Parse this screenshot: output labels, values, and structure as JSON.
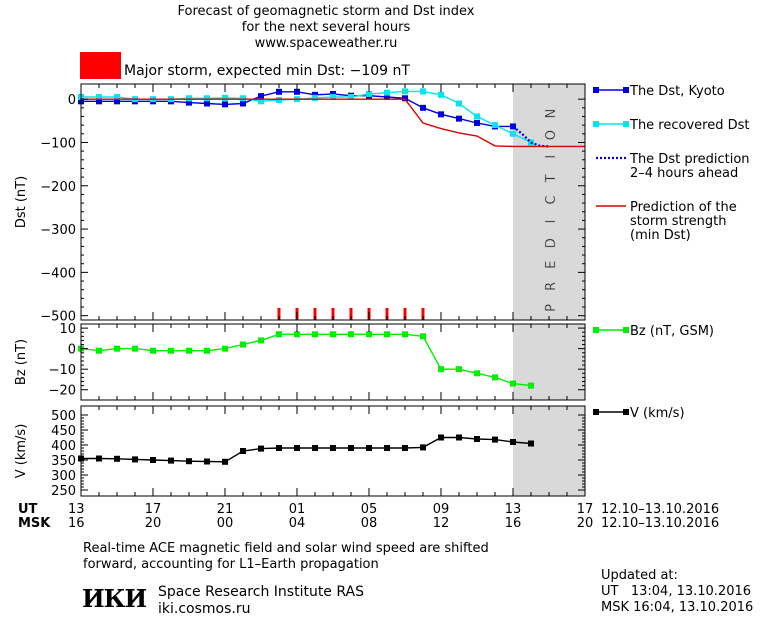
{
  "header": {
    "title_lines": [
      "Forecast of geomagnetic storm and Dst index",
      "for the next several hours",
      "www.spaceweather.ru"
    ],
    "storm_label": "Major storm, expected min Dst: −109 nT",
    "storm_color": "#ff0000"
  },
  "footer": {
    "caption_lines": [
      "Real-time ACE magnetic field and solar wind speed are shifted",
      "forward, accounting for L1–Earth propagation"
    ],
    "logo_text": "ИКИ",
    "institute": "Space Research Institute RAS",
    "site": "iki.cosmos.ru",
    "updated_label": "Updated at:",
    "updated_ut": "UT   13:04, 13.10.2016",
    "updated_msk": "MSK 16:04, 13.10.2016"
  },
  "time_axis": {
    "ut_label": "UT",
    "msk_label": "MSK",
    "ut_ticks": [
      "13",
      "17",
      "21",
      "01",
      "05",
      "09",
      "13",
      "17"
    ],
    "msk_ticks": [
      "16",
      "20",
      "00",
      "04",
      "08",
      "12",
      "16",
      "20"
    ],
    "tick_hours": [
      13,
      17,
      21,
      25,
      29,
      33,
      37,
      41
    ],
    "date_range_ut": "12.10–13.10.2016",
    "date_range_msk": "12.10–13.10.2016",
    "range_hours": [
      13,
      41
    ],
    "prediction_start_hour": 37,
    "prediction_label": "PREDICTION"
  },
  "chart_data": [
    {
      "type": "line",
      "ylabel": "Dst (nT)",
      "ylim": [
        -510,
        35
      ],
      "yticks": [
        0,
        -100,
        -200,
        -300,
        -400,
        -500
      ],
      "x_units": "hours after 12.10.2016 00:00 UT",
      "series": [
        {
          "name": "The Dst, Kyoto",
          "color": "#0000dd",
          "style": "line-square",
          "x": [
            13,
            14,
            15,
            16,
            17,
            18,
            19,
            20,
            21,
            22,
            23,
            24,
            25,
            26,
            27,
            28,
            29,
            30,
            31,
            32,
            33,
            34,
            35,
            36,
            37
          ],
          "y": [
            -5,
            -5,
            -5,
            -5,
            -5,
            -5,
            -8,
            -10,
            -12,
            -10,
            7,
            17,
            17,
            10,
            12,
            8,
            8,
            5,
            2,
            -20,
            -35,
            -45,
            -55,
            -63,
            -63
          ]
        },
        {
          "name": "The recovered Dst",
          "color": "#00e5ee",
          "style": "line-square",
          "x": [
            13,
            14,
            15,
            16,
            17,
            18,
            19,
            20,
            21,
            22,
            23,
            24,
            25,
            26,
            27,
            28,
            29,
            30,
            31,
            32,
            33,
            34,
            35,
            36,
            37,
            38
          ],
          "y": [
            5,
            5,
            5,
            0,
            0,
            0,
            2,
            2,
            3,
            2,
            -5,
            -2,
            0,
            3,
            5,
            5,
            12,
            15,
            18,
            18,
            10,
            -10,
            -40,
            -60,
            -80,
            -100
          ]
        },
        {
          "name": "The Dst prediction 2–4 hours ahead",
          "legend_lines": [
            "The Dst prediction",
            "2–4 hours ahead"
          ],
          "color": "#0000dd",
          "style": "dotted",
          "x": [
            37,
            37.5,
            38,
            38.5,
            39
          ],
          "y": [
            -63,
            -80,
            -100,
            -108,
            -109
          ]
        },
        {
          "name": "Prediction of the storm strength (min Dst)",
          "legend_lines": [
            "Prediction of the",
            "storm strength",
            "(min Dst)"
          ],
          "color": "#dd0000",
          "style": "line",
          "x": [
            13,
            31,
            32,
            33,
            34,
            35,
            36,
            37,
            38,
            39,
            41
          ],
          "y": [
            0,
            0,
            -55,
            -68,
            -78,
            -85,
            -108,
            -109,
            -109,
            -109,
            -109
          ]
        }
      ],
      "storm_markers": {
        "color": "#ff0000",
        "x": [
          24,
          25,
          26,
          27,
          28,
          29,
          30,
          31,
          32
        ]
      }
    },
    {
      "type": "line",
      "ylabel": "Bz (nT)",
      "ylim": [
        -25,
        12
      ],
      "yticks": [
        10,
        0,
        -10,
        -20
      ],
      "series": [
        {
          "name": "Bz (nT, GSM)",
          "color": "#00ee00",
          "style": "line-square",
          "x": [
            13,
            14,
            15,
            16,
            17,
            18,
            19,
            20,
            21,
            22,
            23,
            24,
            25,
            26,
            27,
            28,
            29,
            30,
            31,
            32,
            33,
            34,
            35,
            36,
            37,
            38
          ],
          "y": [
            0,
            -1,
            0,
            0,
            -1,
            -1,
            -1,
            -1,
            0,
            2,
            4,
            7,
            7,
            7,
            7,
            7,
            7,
            7,
            7,
            6,
            -10,
            -10,
            -12,
            -14,
            -17,
            -18
          ]
        }
      ]
    },
    {
      "type": "line",
      "ylabel": "V (km/s)",
      "ylim": [
        230,
        530
      ],
      "yticks": [
        500,
        450,
        400,
        350,
        300,
        250
      ],
      "series": [
        {
          "name": "V (km/s)",
          "color": "#000000",
          "style": "line-square",
          "x": [
            13,
            14,
            15,
            16,
            17,
            18,
            19,
            20,
            21,
            22,
            23,
            24,
            25,
            26,
            27,
            28,
            29,
            30,
            31,
            32,
            33,
            34,
            35,
            36,
            37,
            38
          ],
          "y": [
            355,
            355,
            354,
            352,
            350,
            348,
            346,
            345,
            344,
            380,
            388,
            390,
            390,
            390,
            390,
            390,
            390,
            390,
            390,
            392,
            425,
            425,
            420,
            418,
            410,
            405
          ]
        }
      ]
    }
  ]
}
